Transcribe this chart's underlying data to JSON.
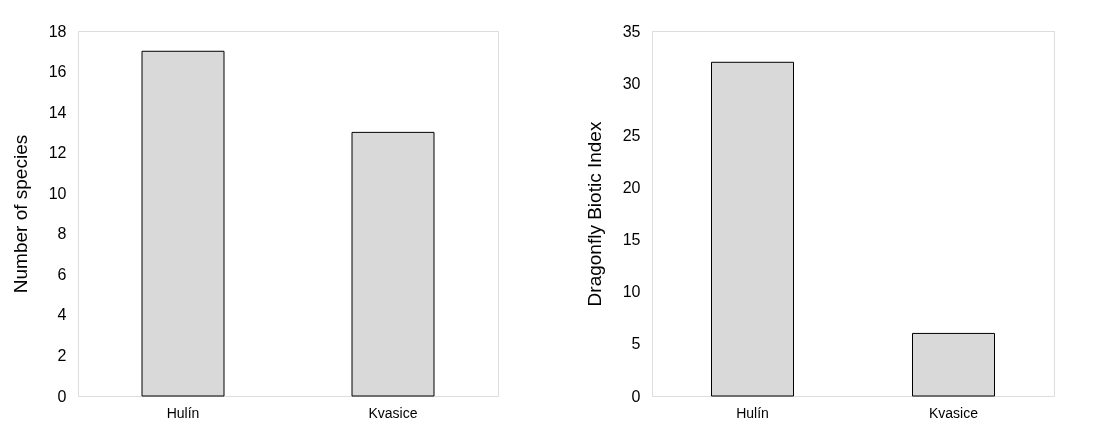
{
  "chart_data": [
    {
      "type": "bar",
      "ylabel": "Number of species",
      "categories": [
        "Hulín",
        "Kvasice"
      ],
      "values": [
        17,
        13
      ],
      "color": "#d9d9d9",
      "ylim": [
        0,
        18
      ],
      "yticks": [
        0,
        2,
        4,
        6,
        8,
        10,
        12,
        14,
        16,
        18
      ]
    },
    {
      "type": "bar",
      "ylabel": "Dragonfly Biotic Index",
      "categories": [
        "Hulín",
        "Kvasice"
      ],
      "values": [
        32,
        6
      ],
      "color": "#d9d9d9",
      "ylim": [
        0,
        35
      ],
      "yticks": [
        0,
        5,
        10,
        15,
        20,
        25,
        30,
        35
      ]
    }
  ]
}
